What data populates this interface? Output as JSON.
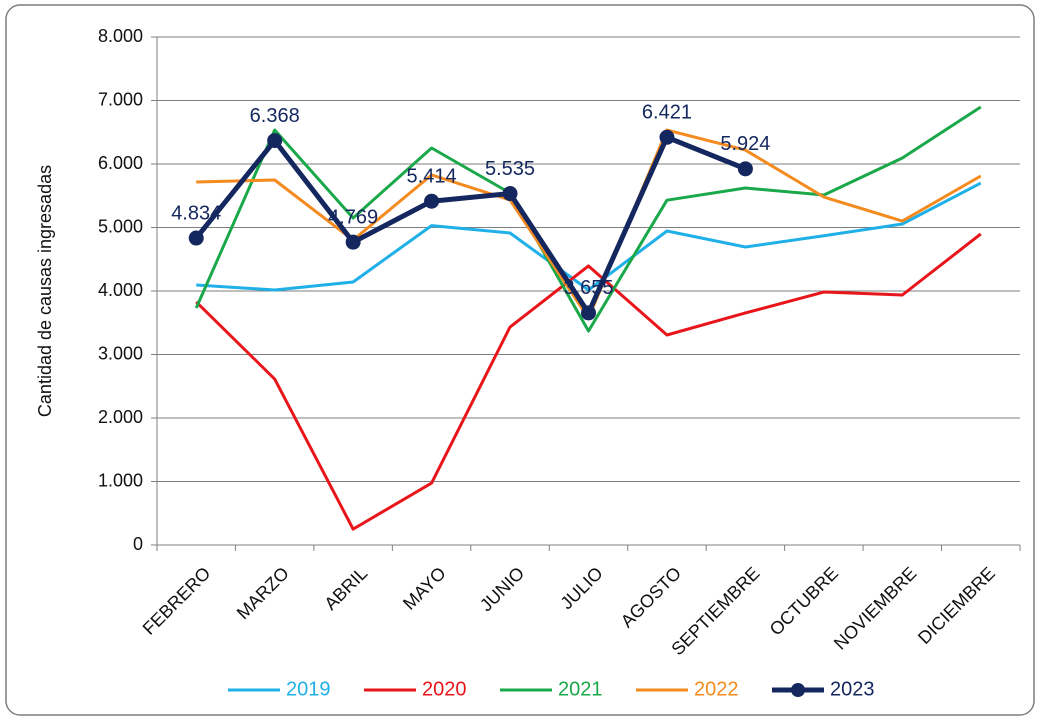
{
  "chart_data": {
    "type": "line",
    "y_label": "Cantidad de causas ingresadas",
    "categories": [
      "FEBRERO",
      "MARZO",
      "ABRIL",
      "MAYO",
      "JUNIO",
      "JULIO",
      "AGOSTO",
      "SEPTIEMBRE",
      "OCTUBRE",
      "NOVIEMBRE",
      "DICIEMBRE"
    ],
    "series": [
      {
        "name": "2019",
        "color": "#1fb0e8",
        "values": [
          4094,
          4016,
          4142,
          5030,
          4913,
          4016,
          4945,
          4693,
          4870,
          5055,
          5700
        ]
      },
      {
        "name": "2020",
        "color": "#e8161b",
        "values": [
          3827,
          2614,
          250,
          976,
          3433,
          4394,
          3307,
          3654,
          3984,
          3937,
          4898
        ]
      },
      {
        "name": "2021",
        "color": "#1aa84a",
        "values": [
          3732,
          6535,
          5150,
          6252,
          5543,
          3370,
          5430,
          5622,
          5512,
          6094,
          6898
        ]
      },
      {
        "name": "2022",
        "color": "#f58a1f",
        "values": [
          5717,
          5748,
          4803,
          5827,
          5433,
          3575,
          6535,
          6220,
          5480,
          5102,
          5811
        ]
      },
      {
        "name": "2023",
        "color": "#14275e",
        "markers": true,
        "values": [
          4834,
          6368,
          4769,
          5414,
          5535,
          3655,
          6421,
          5924,
          null,
          null,
          null
        ],
        "value_labels": [
          "4.834",
          "6.368",
          "4.769",
          "5.414",
          "5.535",
          "3.655",
          "6.421",
          "5.924",
          null,
          null,
          null
        ]
      }
    ],
    "ylim": [
      0,
      8000
    ],
    "yticks": [
      0,
      {
        "value": 1000,
        "label": "1.000"
      },
      {
        "value": 2000,
        "label": "2.000"
      },
      {
        "value": 3000,
        "label": "3.000"
      },
      {
        "value": 4000,
        "label": "4.000"
      },
      {
        "value": 5000,
        "label": "5.000"
      },
      {
        "value": 6000,
        "label": "6.000"
      },
      {
        "value": 7000,
        "label": "7.000"
      },
      {
        "value": 8000,
        "label": "8.000"
      }
    ],
    "grid": true,
    "legend": "bottom"
  }
}
